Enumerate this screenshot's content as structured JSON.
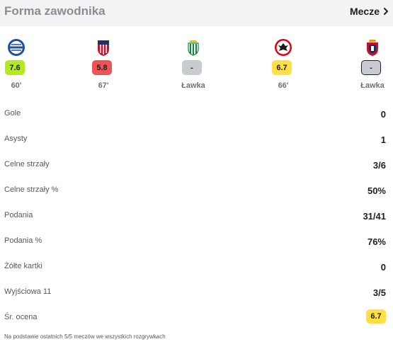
{
  "header": {
    "title": "Forma zawodnika",
    "link_label": "Mecze"
  },
  "matches": [
    {
      "crest_icon": "alaves-crest-icon",
      "rating": "7.6",
      "rating_color": "#b4ea20",
      "minutes": "60'"
    },
    {
      "crest_icon": "atletico-madrid-crest-icon",
      "rating": "5.8",
      "rating_color": "#f25252",
      "minutes": "67'"
    },
    {
      "crest_icon": "real-betis-crest-icon",
      "rating": "-",
      "rating_color": "#c8cbcf",
      "minutes": "Ławka"
    },
    {
      "crest_icon": "eintracht-frankfurt-crest-icon",
      "rating": "6.7",
      "rating_color": "#ffe043",
      "minutes": "66'"
    },
    {
      "crest_icon": "osasuna-crest-icon",
      "rating": "-",
      "rating_color": "#c8cbcf",
      "minutes": "Ławka"
    }
  ],
  "stats": [
    {
      "label": "Gole",
      "value": "0"
    },
    {
      "label": "Asysty",
      "value": "1"
    },
    {
      "label": "Celne strzały",
      "value": "3/6"
    },
    {
      "label": "Celne strzały %",
      "value": "50%"
    },
    {
      "label": "Podania",
      "value": "31/41"
    },
    {
      "label": "Podania %",
      "value": "76%"
    },
    {
      "label": "Żółte kartki",
      "value": "0"
    },
    {
      "label": "Wyjściowa 11",
      "value": "3/5"
    }
  ],
  "average": {
    "label": "Śr. ocena",
    "value": "6.7",
    "color": "#ffe043"
  },
  "footnote": "Na podstawie ostatnich 5/5 meczów we wszystkich rozgrywkach"
}
